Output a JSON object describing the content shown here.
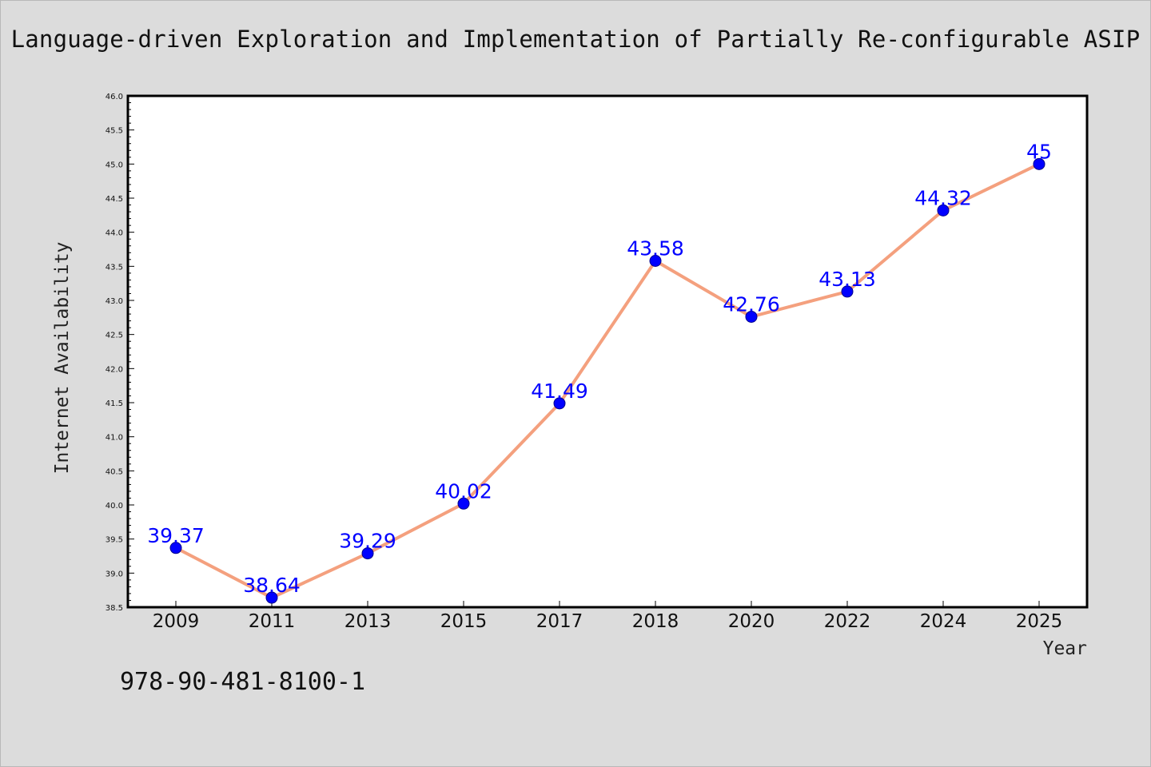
{
  "title": "Language-driven Exploration and Implementation of Partially Re-configurable ASIP",
  "footer_text": "978-90-481-8100-1",
  "colors": {
    "background": "#dcdcdc",
    "plot_background": "#ffffff",
    "line": "#f4a07e",
    "marker": "#0000ff",
    "data_label": "#0000ff"
  },
  "chart_data": {
    "type": "line",
    "title": "Language-driven Exploration and Implementation of Partially Re-configurable ASIP",
    "xlabel": "Year",
    "ylabel": "Internet Availability",
    "categories": [
      "2009",
      "2011",
      "2013",
      "2015",
      "2017",
      "2018",
      "2020",
      "2022",
      "2024",
      "2025"
    ],
    "values": [
      39.37,
      38.64,
      39.29,
      40.02,
      41.49,
      43.58,
      42.76,
      43.13,
      44.32,
      45
    ],
    "data_labels": [
      "39.37",
      "38.64",
      "39.29",
      "40.02",
      "41.49",
      "43.58",
      "42.76",
      "43.13",
      "44.32",
      "45"
    ],
    "ylim": [
      38.5,
      46.0
    ],
    "yticks": [
      "38.5",
      "39.0",
      "39.5",
      "40.0",
      "40.5",
      "41.0",
      "41.5",
      "42.0",
      "42.5",
      "43.0",
      "43.5",
      "44.0",
      "44.5",
      "45.0",
      "45.5",
      "46.0"
    ],
    "grid": false,
    "legend": "none"
  }
}
